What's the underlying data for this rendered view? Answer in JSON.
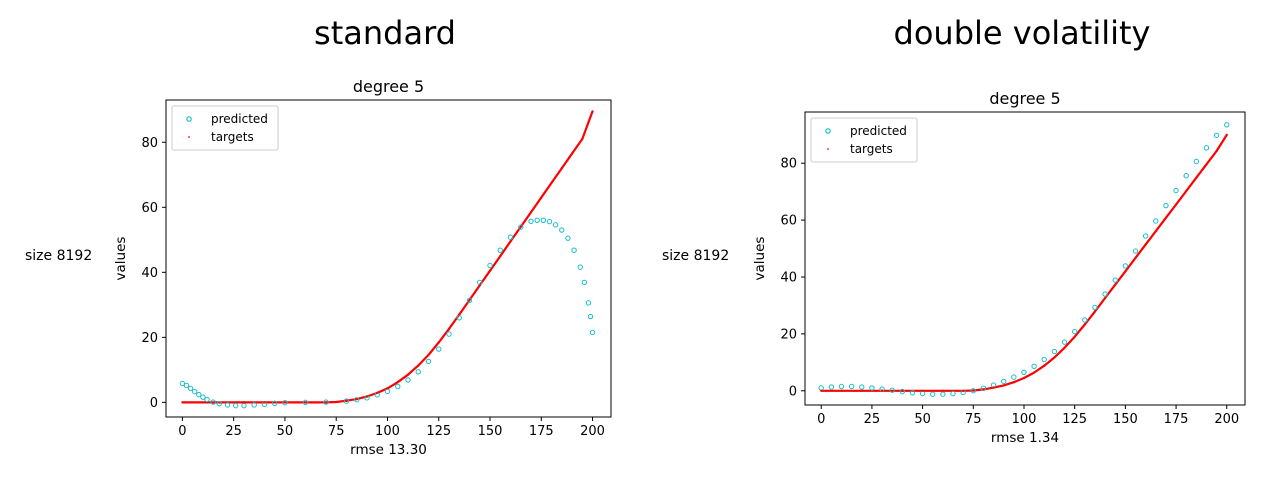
{
  "panels": [
    {
      "heading": "standard",
      "row_label": "size 8192",
      "colors": {
        "predicted": "#17becf",
        "targets": "#ff0000"
      },
      "chart_data": {
        "type": "scatter",
        "title": "degree 5",
        "xlabel": "rmse 13.30",
        "ylabel": "values",
        "xlim": [
          -8,
          209
        ],
        "ylim": [
          -4.5,
          93
        ],
        "xticks": [
          0,
          25,
          50,
          75,
          100,
          125,
          150,
          175,
          200
        ],
        "yticks": [
          0,
          20,
          40,
          60,
          80
        ],
        "legend": {
          "position": "upper-left",
          "entries": [
            "predicted",
            "targets"
          ]
        },
        "grid": false,
        "series": [
          {
            "name": "predicted",
            "marker": "hollow-circle",
            "points": [
              [
                0,
                5.8
              ],
              [
                2,
                5.2
              ],
              [
                4,
                4.3
              ],
              [
                6,
                3.3
              ],
              [
                8,
                2.4
              ],
              [
                10,
                1.6
              ],
              [
                12,
                0.9
              ],
              [
                15,
                0.1
              ],
              [
                18,
                -0.4
              ],
              [
                22,
                -0.8
              ],
              [
                26,
                -1.0
              ],
              [
                30,
                -1.0
              ],
              [
                35,
                -0.8
              ],
              [
                40,
                -0.6
              ],
              [
                45,
                -0.3
              ],
              [
                50,
                -0.1
              ],
              [
                60,
                0.0
              ],
              [
                70,
                0.1
              ],
              [
                80,
                0.4
              ],
              [
                85,
                0.8
              ],
              [
                90,
                1.4
              ],
              [
                95,
                2.3
              ],
              [
                100,
                3.4
              ],
              [
                105,
                4.9
              ],
              [
                110,
                6.9
              ],
              [
                115,
                9.4
              ],
              [
                120,
                12.6
              ],
              [
                125,
                16.4
              ],
              [
                130,
                21.0
              ],
              [
                135,
                26.0
              ],
              [
                140,
                31.4
              ],
              [
                145,
                36.9
              ],
              [
                150,
                42.1
              ],
              [
                155,
                46.8
              ],
              [
                160,
                50.8
              ],
              [
                165,
                53.9
              ],
              [
                170,
                55.7
              ],
              [
                173,
                56.0
              ],
              [
                176,
                56.0
              ],
              [
                179,
                55.6
              ],
              [
                182,
                54.6
              ],
              [
                185,
                53.0
              ],
              [
                188,
                50.5
              ],
              [
                191,
                46.8
              ],
              [
                194,
                41.6
              ],
              [
                196,
                36.9
              ],
              [
                198,
                30.6
              ],
              [
                199,
                26.4
              ],
              [
                200,
                21.5
              ]
            ]
          },
          {
            "name": "targets",
            "marker": "dot",
            "points": [
              [
                0,
                0.0
              ],
              [
                10,
                0.0
              ],
              [
                20,
                0.0
              ],
              [
                30,
                0.0
              ],
              [
                40,
                0.0
              ],
              [
                50,
                0.0
              ],
              [
                60,
                0.0
              ],
              [
                70,
                0.0
              ],
              [
                75,
                0.1
              ],
              [
                80,
                0.5
              ],
              [
                85,
                1.0
              ],
              [
                90,
                1.8
              ],
              [
                95,
                2.9
              ],
              [
                100,
                4.3
              ],
              [
                105,
                6.2
              ],
              [
                110,
                8.5
              ],
              [
                115,
                11.3
              ],
              [
                120,
                14.6
              ],
              [
                125,
                18.4
              ],
              [
                130,
                22.6
              ],
              [
                135,
                27.0
              ],
              [
                140,
                31.5
              ],
              [
                145,
                36.0
              ],
              [
                150,
                40.5
              ],
              [
                155,
                45.0
              ],
              [
                160,
                49.5
              ],
              [
                165,
                54.0
              ],
              [
                170,
                58.5
              ],
              [
                175,
                63.0
              ],
              [
                180,
                67.5
              ],
              [
                185,
                72.0
              ],
              [
                190,
                76.5
              ],
              [
                195,
                81.0
              ],
              [
                200,
                89.5
              ]
            ]
          }
        ]
      }
    },
    {
      "heading": "double volatility",
      "row_label": "size 8192",
      "colors": {
        "predicted": "#17becf",
        "targets": "#ff0000"
      },
      "chart_data": {
        "type": "scatter",
        "title": "degree 5",
        "xlabel": "rmse 1.34",
        "ylabel": "values",
        "xlim": [
          -8,
          209
        ],
        "ylim": [
          -5,
          98
        ],
        "xticks": [
          0,
          25,
          50,
          75,
          100,
          125,
          150,
          175,
          200
        ],
        "yticks": [
          0,
          20,
          40,
          60,
          80
        ],
        "legend": {
          "position": "upper-left",
          "entries": [
            "predicted",
            "targets"
          ]
        },
        "grid": false,
        "series": [
          {
            "name": "predicted",
            "marker": "hollow-circle",
            "points": [
              [
                0,
                1.0
              ],
              [
                5,
                1.3
              ],
              [
                10,
                1.5
              ],
              [
                15,
                1.5
              ],
              [
                20,
                1.3
              ],
              [
                25,
                1.0
              ],
              [
                30,
                0.6
              ],
              [
                35,
                0.2
              ],
              [
                40,
                -0.3
              ],
              [
                45,
                -0.7
              ],
              [
                50,
                -1.0
              ],
              [
                55,
                -1.2
              ],
              [
                60,
                -1.2
              ],
              [
                65,
                -1.0
              ],
              [
                70,
                -0.6
              ],
              [
                75,
                0.0
              ],
              [
                80,
                0.9
              ],
              [
                85,
                2.0
              ],
              [
                90,
                3.3
              ],
              [
                95,
                4.8
              ],
              [
                100,
                6.5
              ],
              [
                105,
                8.6
              ],
              [
                110,
                11.0
              ],
              [
                115,
                13.8
              ],
              [
                120,
                17.1
              ],
              [
                125,
                20.8
              ],
              [
                130,
                24.9
              ],
              [
                135,
                29.3
              ],
              [
                140,
                34.0
              ],
              [
                145,
                38.9
              ],
              [
                150,
                43.9
              ],
              [
                155,
                49.1
              ],
              [
                160,
                54.4
              ],
              [
                165,
                59.7
              ],
              [
                170,
                65.1
              ],
              [
                175,
                70.4
              ],
              [
                180,
                75.6
              ],
              [
                185,
                80.6
              ],
              [
                190,
                85.4
              ],
              [
                195,
                89.8
              ],
              [
                200,
                93.5
              ]
            ]
          },
          {
            "name": "targets",
            "marker": "dot",
            "points": [
              [
                0,
                0.0
              ],
              [
                10,
                0.0
              ],
              [
                20,
                0.0
              ],
              [
                30,
                0.0
              ],
              [
                40,
                0.0
              ],
              [
                50,
                0.0
              ],
              [
                60,
                0.0
              ],
              [
                70,
                0.0
              ],
              [
                75,
                0.1
              ],
              [
                80,
                0.5
              ],
              [
                85,
                1.1
              ],
              [
                90,
                1.9
              ],
              [
                95,
                3.0
              ],
              [
                100,
                4.5
              ],
              [
                105,
                6.4
              ],
              [
                110,
                8.8
              ],
              [
                115,
                11.7
              ],
              [
                120,
                15.1
              ],
              [
                125,
                19.0
              ],
              [
                130,
                23.3
              ],
              [
                135,
                27.9
              ],
              [
                140,
                32.6
              ],
              [
                145,
                37.3
              ],
              [
                150,
                42.0
              ],
              [
                155,
                46.7
              ],
              [
                160,
                51.4
              ],
              [
                165,
                56.1
              ],
              [
                170,
                60.8
              ],
              [
                175,
                65.5
              ],
              [
                180,
                70.2
              ],
              [
                185,
                74.9
              ],
              [
                190,
                79.6
              ],
              [
                195,
                84.3
              ],
              [
                200,
                90.0
              ]
            ]
          }
        ]
      }
    }
  ]
}
